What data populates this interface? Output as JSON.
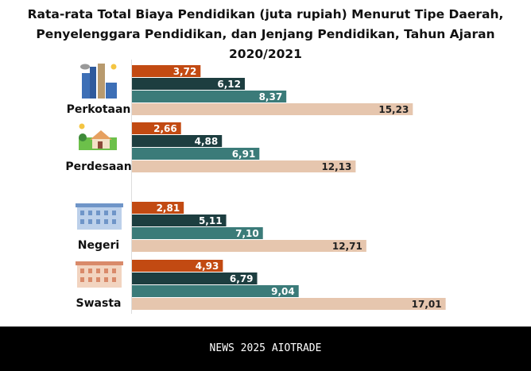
{
  "title_line1": "Rata-rata Total Biaya Pendidikan (juta rupiah) Menurut Tipe Daerah,",
  "title_line2": "Penyelenggara Pendidikan, dan Jenjang Pendidikan, Tahun Ajaran 2020/2021",
  "footer": "NEWS 2025 AIOTRADE",
  "chart_data": {
    "type": "bar",
    "orientation": "horizontal",
    "categories": [
      "Perkotaan",
      "Perdesaan",
      "Negeri",
      "Swasta"
    ],
    "series": [
      {
        "values": [
          3.72,
          2.66,
          2.81,
          4.93
        ],
        "color": "#c24a12"
      },
      {
        "values": [
          6.12,
          4.88,
          5.11,
          6.79
        ],
        "color": "#1d3e40"
      },
      {
        "values": [
          8.37,
          6.91,
          7.1,
          9.04
        ],
        "color": "#3b7b79"
      },
      {
        "values": [
          15.23,
          12.13,
          12.71,
          17.01
        ],
        "color": "#e6c6ae"
      }
    ],
    "labels": [
      [
        "3,72",
        "6,12",
        "8,37",
        "15,23"
      ],
      [
        "2,66",
        "4,88",
        "6,91",
        "12,13"
      ],
      [
        "2,81",
        "5,11",
        "7,10",
        "12,71"
      ],
      [
        "4,93",
        "6,79",
        "9,04",
        "17,01"
      ]
    ],
    "icons": [
      "city-icon",
      "village-house-icon",
      "public-school-building-icon",
      "private-school-building-icon"
    ]
  }
}
